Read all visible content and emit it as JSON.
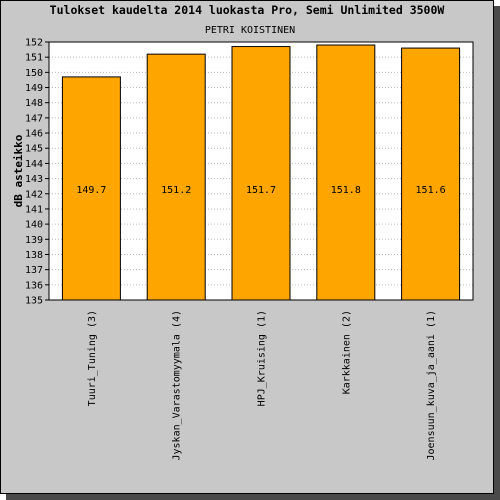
{
  "chart_data": {
    "type": "bar",
    "title": "Tulokset kaudelta 2014 luokasta Pro, Semi Unlimited 3500W",
    "subtitle": "PETRI KOISTINEN",
    "ylabel": "dB asteikko",
    "xlabel": "",
    "ylim": [
      135,
      152
    ],
    "yticks": [
      "135",
      "136",
      "137",
      "138",
      "139",
      "140",
      "141",
      "142",
      "143",
      "144",
      "145",
      "146",
      "147",
      "148",
      "149",
      "150",
      "151",
      "152"
    ],
    "categories": [
      "Tuuri_Tuning (3)",
      "Jyskan_Varastomyymala (4)",
      "HPJ_Kruising (1)",
      "Karkkainen (2)",
      "Joensuun_kuva_ja_aani (1)"
    ],
    "values": [
      149.7,
      151.2,
      151.7,
      151.8,
      151.6
    ],
    "value_labels": [
      "149.7",
      "151.2",
      "151.7",
      "151.8",
      "151.6"
    ],
    "grid": true,
    "bar_color": "#ffa500",
    "background_color": "#c8c8c8",
    "plot_background": "#ffffff"
  }
}
